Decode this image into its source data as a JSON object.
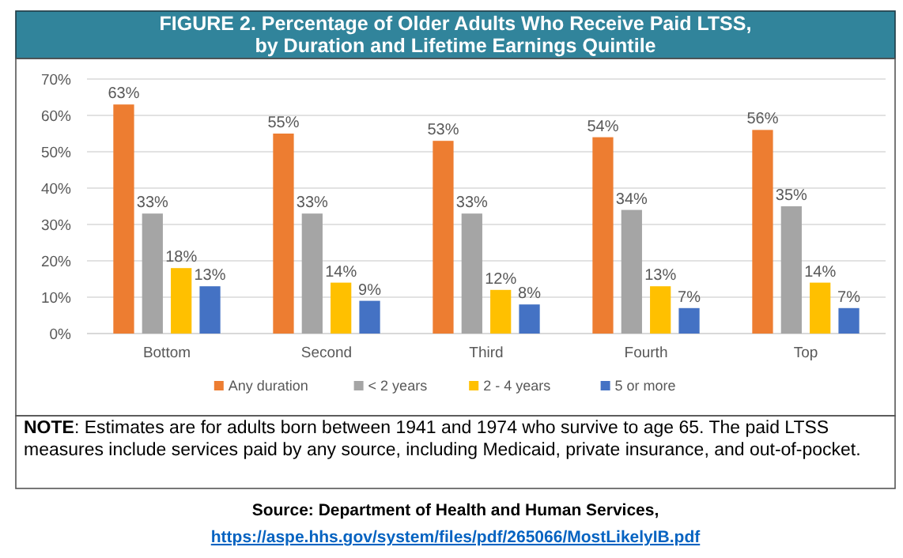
{
  "chart_data": {
    "type": "bar",
    "title": "FIGURE 2. Percentage of Older Adults Who Receive Paid LTSS,\nby Duration and Lifetime Earnings Quintile",
    "categories": [
      "Bottom",
      "Second",
      "Third",
      "Fourth",
      "Top"
    ],
    "series": [
      {
        "name": "Any duration",
        "color": "#ed7d31",
        "values": [
          63,
          55,
          53,
          54,
          56
        ]
      },
      {
        "name": "< 2 years",
        "color": "#a5a5a5",
        "values": [
          33,
          33,
          33,
          34,
          35
        ]
      },
      {
        "name": "2 - 4 years",
        "color": "#ffc000",
        "values": [
          18,
          14,
          12,
          13,
          14
        ]
      },
      {
        "name": "5 or more",
        "color": "#4472c4",
        "values": [
          13,
          9,
          8,
          7,
          7
        ]
      }
    ],
    "ylim": [
      0,
      70
    ],
    "yticks": [
      {
        "value": 0,
        "label": "0%"
      },
      {
        "value": 10,
        "label": "10%"
      },
      {
        "value": 20,
        "label": "20%"
      },
      {
        "value": 30,
        "label": "30%"
      },
      {
        "value": 40,
        "label": "40%"
      },
      {
        "value": 50,
        "label": "50%"
      },
      {
        "value": 60,
        "label": "60%"
      },
      {
        "value": 70,
        "label": "70%"
      }
    ],
    "value_labels": [
      [
        "63%",
        "55%",
        "53%",
        "54%",
        "56%"
      ],
      [
        "33%",
        "33%",
        "33%",
        "34%",
        "35%"
      ],
      [
        "18%",
        "14%",
        "12%",
        "13%",
        "14%"
      ],
      [
        "13%",
        "9%",
        "8%",
        "7%",
        "7%"
      ]
    ],
    "grid": "y",
    "legend": "bottom",
    "annotations": [
      "NOTE:  Estimates are for adults born between 1941 and 1974 who survive to age 65. The paid LTSS measures include services paid by any source, including Medicaid, private insurance, and out-of-pocket.",
      "Source: Department of Health and Human Services,",
      "https://aspe.hhs.gov/system/files/pdf/265066/MostLikelyIB.pdf"
    ]
  }
}
